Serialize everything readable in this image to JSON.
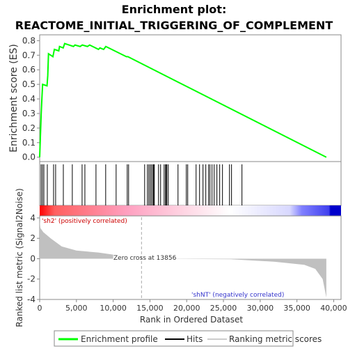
{
  "chart_data": [
    {
      "type": "line",
      "title": [
        "Enrichment plot:",
        "REACTOME_INITIAL_TRIGGERING_OF_COMPLEMENT"
      ],
      "ylabel": "Enrichment score (ES)",
      "x": [
        0,
        200,
        300,
        400,
        1000,
        1100,
        1200,
        1800,
        2000,
        2600,
        2700,
        3200,
        3400,
        4600,
        4800,
        5500,
        5800,
        6500,
        6800,
        8000,
        8200,
        8700,
        9000,
        11800,
        12000,
        39000
      ],
      "values": [
        0,
        0.29,
        0.4,
        0.5,
        0.49,
        0.56,
        0.71,
        0.69,
        0.74,
        0.73,
        0.76,
        0.75,
        0.78,
        0.76,
        0.77,
        0.76,
        0.77,
        0.76,
        0.77,
        0.74,
        0.75,
        0.74,
        0.76,
        0.69,
        0.69,
        0
      ],
      "color": "#00ff00",
      "xlim": [
        0,
        41000
      ],
      "ylim": [
        -0.03,
        0.84
      ],
      "yticks": [
        {
          "value": 0,
          "label": "0.0"
        },
        0.1,
        0.2,
        0.3,
        0.4,
        0.5,
        0.6,
        0.7,
        0.8
      ],
      "legend": [
        "Enrichment profile",
        "Hits",
        "Ranking metric scores"
      ]
    },
    {
      "type": "rug",
      "x": [
        190,
        380,
        570,
        1040,
        1890,
        2170,
        3220,
        4440,
        5770,
        6150,
        7660,
        8980,
        10400,
        11910,
        12100,
        14280,
        14660,
        14850,
        15040,
        15220,
        15410,
        15510,
        15600,
        16170,
        16450,
        16930,
        17120,
        17210,
        17300,
        17490,
        18820,
        19950,
        20140,
        21280,
        21750,
        22220,
        22600,
        22980,
        23170,
        23450,
        23740,
        24110,
        24490,
        24870,
        25820,
        26100,
        27520
      ],
      "color": "#000000"
    },
    {
      "type": "area",
      "ylabel": "Ranked list metric (Signal2Noise)",
      "xlabel": "Rank in Ordered Dataset",
      "x": [
        0,
        100,
        500,
        1500,
        3000,
        5000,
        8000,
        10000,
        10001,
        13856,
        26000,
        32000,
        36000,
        37500,
        38500,
        39000
      ],
      "values": [
        3.8,
        3.0,
        2.6,
        2.0,
        1.2,
        0.8,
        0.6,
        0.4,
        0,
        0,
        -0.05,
        -0.3,
        -0.6,
        -1,
        -2,
        -3.8
      ],
      "color": "#c0c0c0",
      "xlim": [
        0,
        41000
      ],
      "ylim": [
        -4,
        4.2
      ],
      "yticks": [
        -4,
        -2,
        0,
        2,
        4
      ],
      "xticks": [
        0,
        {
          "value": 5000,
          "label": "5,000"
        },
        {
          "value": 10000,
          "label": "10,000"
        },
        {
          "value": 15000,
          "label": "15,000"
        },
        {
          "value": 20000,
          "label": "20,000"
        },
        {
          "value": 25000,
          "label": "25,000"
        },
        {
          "value": 30000,
          "label": "30,000"
        },
        {
          "value": 35000,
          "label": "35,000"
        },
        {
          "value": 40000,
          "label": "40,000"
        }
      ],
      "zero_cross": 13856,
      "annotations": [
        "'sh2' (positively correlated)",
        "Zero cross at 13856",
        "'shNT' (negatively correlated)"
      ]
    }
  ]
}
